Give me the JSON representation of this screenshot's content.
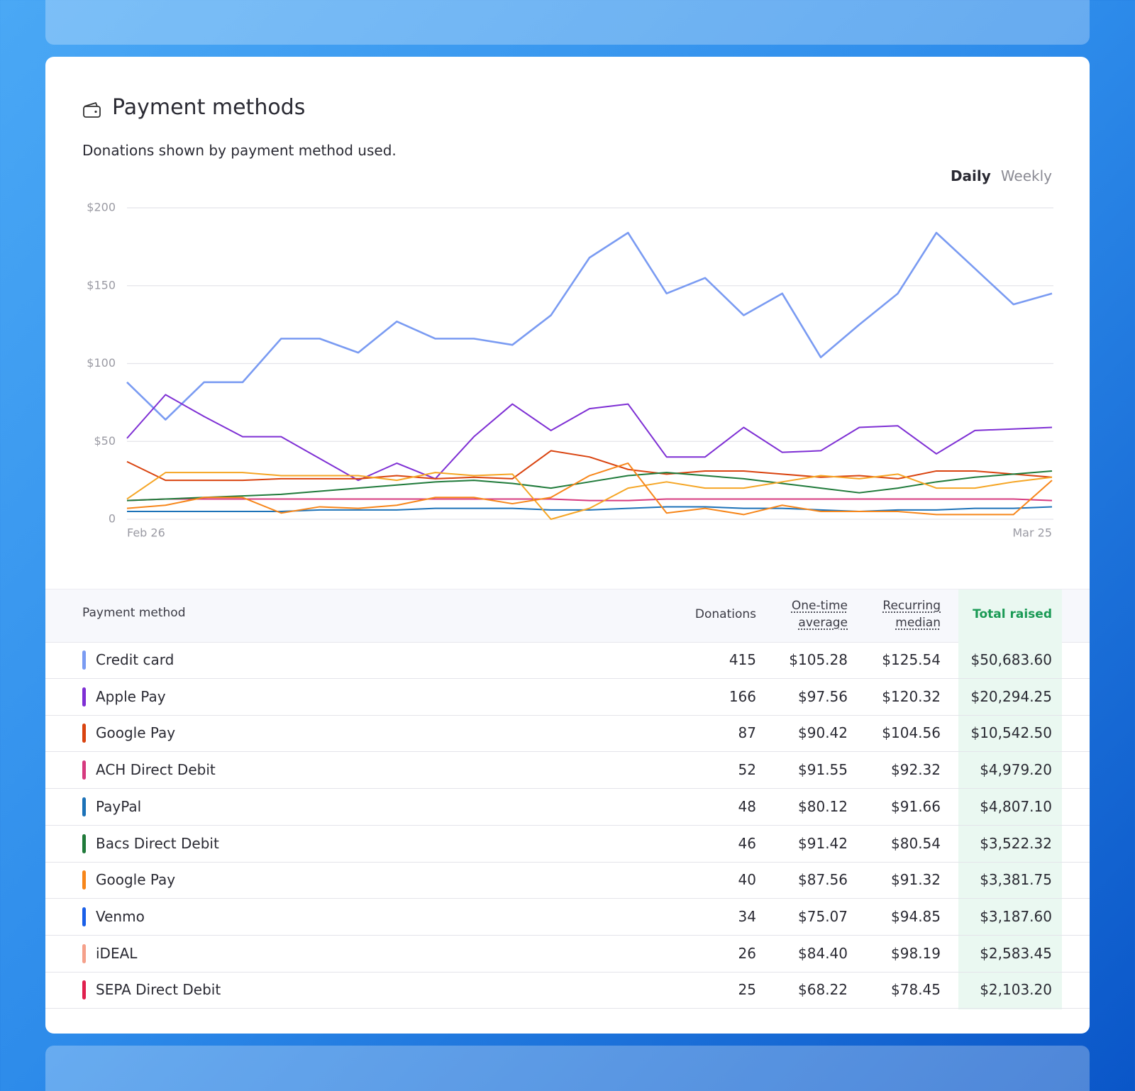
{
  "header": {
    "title": "Payment methods",
    "subtitle": "Donations shown by payment method used.",
    "toggle": {
      "options": [
        "Daily",
        "Weekly"
      ],
      "selected": 0
    }
  },
  "chart_data": {
    "type": "line",
    "categories": [
      "Feb 26",
      null,
      null,
      null,
      null,
      null,
      null,
      null,
      null,
      null,
      null,
      null,
      null,
      null,
      null,
      null,
      null,
      null,
      null,
      null,
      null,
      null,
      null,
      null,
      "Mar 25"
    ],
    "ylim": [
      0,
      200
    ],
    "yticks": [
      0,
      {
        "value": 50,
        "label": "$50"
      },
      {
        "value": 100,
        "label": "$100"
      },
      {
        "value": 150,
        "label": "$150"
      },
      {
        "value": 200,
        "label": "$200"
      }
    ],
    "grid": true,
    "series": [
      {
        "color": "#7a9bf2",
        "values": [
          88,
          64,
          88,
          88,
          116,
          116,
          107,
          127,
          116,
          116,
          112,
          131,
          168,
          184,
          145,
          155,
          131,
          145,
          104,
          125,
          145,
          184,
          161,
          138,
          145
        ]
      },
      {
        "color": "#7e2fd4",
        "values": [
          52,
          80,
          66,
          53,
          53,
          39,
          25,
          36,
          26,
          53,
          74,
          57,
          71,
          74,
          40,
          40,
          59,
          43,
          44,
          59,
          60,
          42,
          57,
          58,
          59
        ]
      },
      {
        "color": "#d9430f",
        "values": [
          37,
          25,
          25,
          25,
          26,
          26,
          26,
          28,
          26,
          27,
          26,
          44,
          40,
          32,
          29,
          31,
          31,
          29,
          27,
          28,
          26,
          31,
          31,
          29,
          27
        ]
      },
      {
        "color": "#d63a7f",
        "values": [
          12,
          13,
          13,
          13,
          13,
          13,
          13,
          13,
          13,
          13,
          13,
          13,
          12,
          12,
          13,
          13,
          13,
          13,
          13,
          13,
          13,
          13,
          13,
          13,
          12
        ]
      },
      {
        "color": "#1c72b8",
        "values": [
          5,
          5,
          5,
          5,
          5,
          6,
          6,
          6,
          7,
          7,
          7,
          6,
          6,
          7,
          8,
          8,
          7,
          7,
          6,
          5,
          6,
          6,
          7,
          7,
          8
        ]
      },
      {
        "color": "#1f7a3a",
        "values": [
          12,
          13,
          14,
          15,
          16,
          18,
          20,
          22,
          24,
          25,
          23,
          20,
          24,
          28,
          30,
          28,
          26,
          23,
          20,
          17,
          20,
          24,
          27,
          29,
          31
        ]
      },
      {
        "color": "#f5a524",
        "values": [
          13,
          30,
          30,
          30,
          28,
          28,
          28,
          25,
          30,
          28,
          29,
          0,
          7,
          20,
          24,
          20,
          20,
          24,
          28,
          26,
          29,
          20,
          20,
          24,
          27
        ]
      },
      {
        "color": "#f7861a",
        "values": [
          7,
          9,
          14,
          14,
          4,
          8,
          7,
          9,
          14,
          14,
          10,
          14,
          28,
          36,
          4,
          7,
          3,
          9,
          5,
          5,
          5,
          3,
          3,
          3,
          25
        ]
      }
    ]
  },
  "table": {
    "columns": [
      "Payment method",
      "Donations",
      "One-time average",
      "Recurring median",
      "Total raised"
    ],
    "rows": [
      {
        "color": "#7a9bf2",
        "name": "Credit card",
        "donations": 415,
        "one_time_average": "$105.28",
        "recurring_median": "$125.54",
        "total_raised": "$50,683.60"
      },
      {
        "color": "#7e2fd4",
        "name": "Apple Pay",
        "donations": 166,
        "one_time_average": "$97.56",
        "recurring_median": "$120.32",
        "total_raised": "$20,294.25"
      },
      {
        "color": "#d9430f",
        "name": "Google Pay",
        "donations": 87,
        "one_time_average": "$90.42",
        "recurring_median": "$104.56",
        "total_raised": "$10,542.50"
      },
      {
        "color": "#d63a7f",
        "name": "ACH Direct Debit",
        "donations": 52,
        "one_time_average": "$91.55",
        "recurring_median": "$92.32",
        "total_raised": "$4,979.20"
      },
      {
        "color": "#1c72b8",
        "name": "PayPal",
        "donations": 48,
        "one_time_average": "$80.12",
        "recurring_median": "$91.66",
        "total_raised": "$4,807.10"
      },
      {
        "color": "#1f7a3a",
        "name": "Bacs Direct Debit",
        "donations": 46,
        "one_time_average": "$91.42",
        "recurring_median": "$80.54",
        "total_raised": "$3,522.32"
      },
      {
        "color": "#f7861a",
        "name": "Google Pay",
        "donations": 40,
        "one_time_average": "$87.56",
        "recurring_median": "$91.32",
        "total_raised": "$3,381.75"
      },
      {
        "color": "#1a5fe8",
        "name": "Venmo",
        "donations": 34,
        "one_time_average": "$75.07",
        "recurring_median": "$94.85",
        "total_raised": "$3,187.60"
      },
      {
        "color": "#f5a08a",
        "name": "iDEAL",
        "donations": 26,
        "one_time_average": "$84.40",
        "recurring_median": "$98.19",
        "total_raised": "$2,583.45"
      },
      {
        "color": "#e0204e",
        "name": "SEPA Direct Debit",
        "donations": 25,
        "one_time_average": "$68.22",
        "recurring_median": "$78.45",
        "total_raised": "$2,103.20"
      }
    ]
  }
}
